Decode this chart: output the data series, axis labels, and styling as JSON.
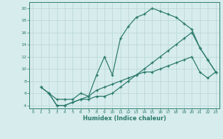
{
  "xlabel": "Humidex (Indice chaleur)",
  "xlim": [
    -0.5,
    23.5
  ],
  "ylim": [
    3.5,
    21.0
  ],
  "background_color": "#d7ecec",
  "grid_color": "#bcd8d8",
  "line_color": "#2a7a6a",
  "curve1_x": [
    1,
    2,
    3,
    4,
    5,
    6,
    7,
    8,
    9,
    10,
    11,
    12,
    13,
    14,
    15,
    16,
    17,
    18,
    19,
    20,
    21,
    22,
    23
  ],
  "curve1_y": [
    7.0,
    6.0,
    5.0,
    5.0,
    5.0,
    6.0,
    5.5,
    9.0,
    12.0,
    9.0,
    15.0,
    17.0,
    18.5,
    19.0,
    20.0,
    19.5,
    19.0,
    18.5,
    17.5,
    16.5,
    13.5,
    11.5,
    9.5
  ],
  "curve2_x": [
    1,
    2,
    3,
    4,
    5,
    6,
    7,
    8,
    9,
    10,
    11,
    12,
    13,
    14,
    15,
    16,
    17,
    18,
    19,
    20,
    21,
    22,
    23
  ],
  "curve2_y": [
    7.0,
    6.0,
    4.0,
    4.0,
    4.5,
    5.0,
    5.0,
    5.5,
    5.5,
    6.0,
    7.0,
    8.0,
    9.0,
    10.0,
    11.0,
    12.0,
    13.0,
    14.0,
    15.0,
    16.0,
    13.5,
    11.5,
    9.5
  ],
  "curve3_x": [
    2,
    3,
    4,
    5,
    6,
    7,
    8,
    9,
    10,
    11,
    12,
    13,
    14,
    15,
    16,
    17,
    18,
    19,
    20,
    21,
    22,
    23
  ],
  "curve3_y": [
    6.0,
    4.0,
    4.0,
    4.5,
    5.0,
    5.5,
    6.5,
    7.0,
    7.5,
    8.0,
    8.5,
    9.0,
    9.5,
    9.5,
    10.0,
    10.5,
    11.0,
    11.5,
    12.0,
    9.5,
    8.5,
    9.5
  ],
  "yticks": [
    4,
    6,
    8,
    10,
    12,
    14,
    16,
    18,
    20
  ],
  "xticks": [
    0,
    1,
    2,
    3,
    4,
    5,
    6,
    7,
    8,
    9,
    10,
    11,
    12,
    13,
    14,
    15,
    16,
    17,
    18,
    19,
    20,
    21,
    22,
    23
  ]
}
